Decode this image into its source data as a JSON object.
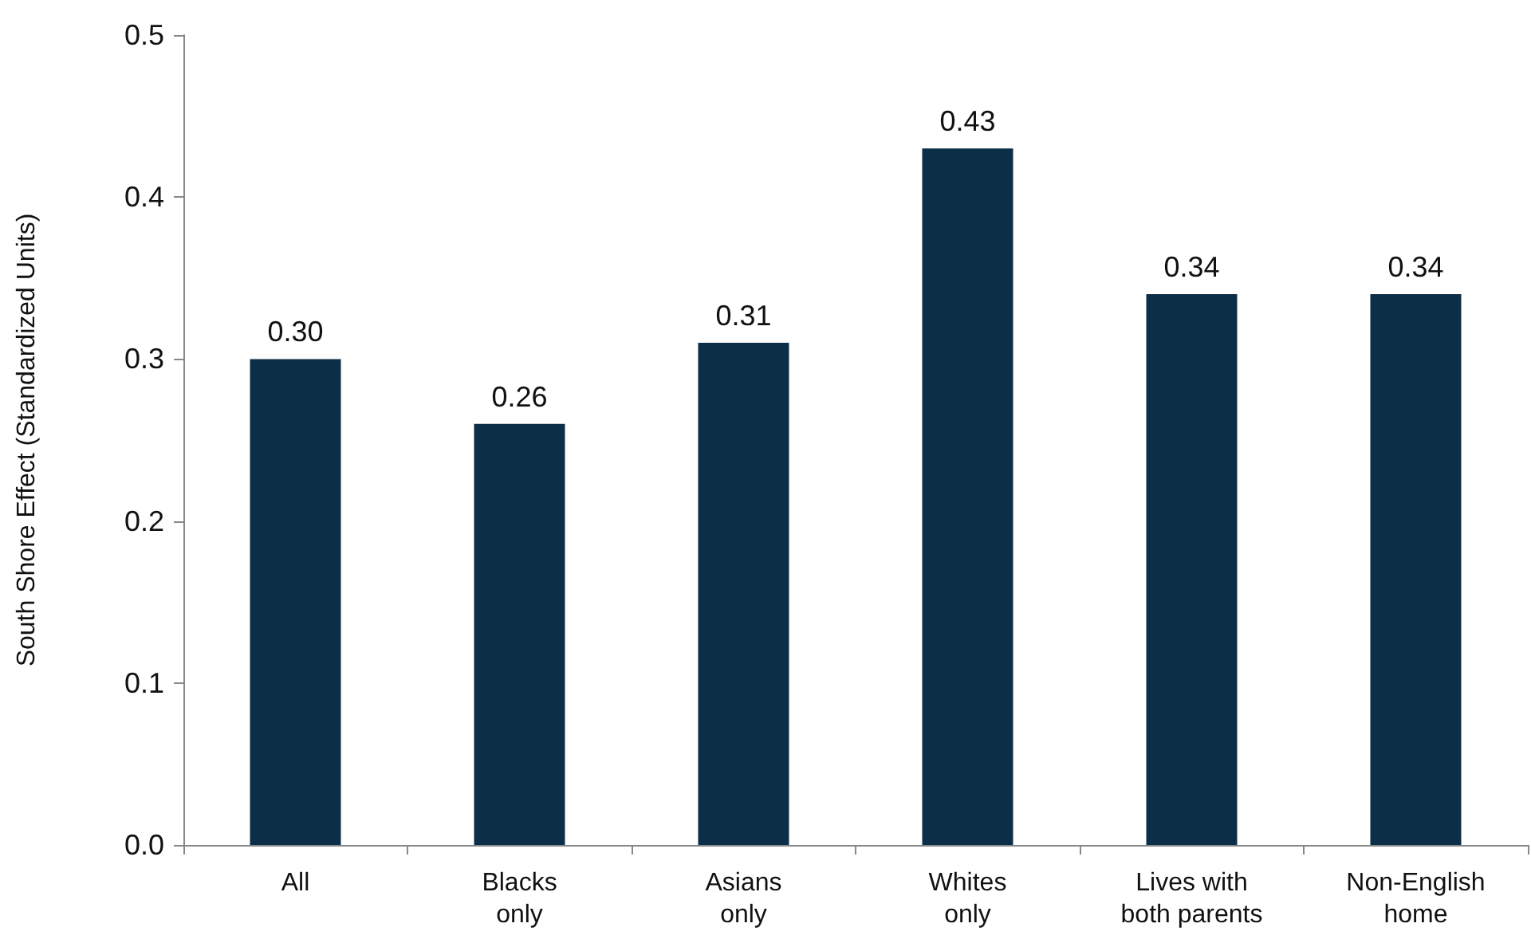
{
  "chart_data": {
    "type": "bar",
    "ylabel": "South Shore Effect (Standardized Units)",
    "categories": [
      "All",
      "Blacks\nonly",
      "Asians\nonly",
      "Whites\nonly",
      "Lives with\nboth parents",
      "Non-English\nhome"
    ],
    "values": [
      0.3,
      0.26,
      0.31,
      0.43,
      0.34,
      0.34
    ],
    "value_labels": [
      "0.30",
      "0.26",
      "0.31",
      "0.43",
      "0.34",
      "0.34"
    ],
    "color": "#0d2e47",
    "ylim": [
      0,
      0.5
    ],
    "yticks": [
      {
        "value": 0,
        "label": "0.0"
      },
      0.1,
      0.2,
      0.3,
      0.4,
      0.5
    ],
    "grid": false
  }
}
